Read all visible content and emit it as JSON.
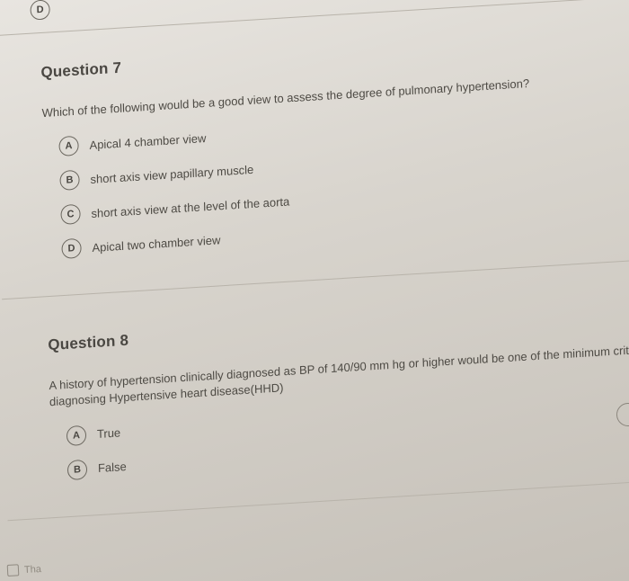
{
  "prev_option": {
    "letter": "D"
  },
  "question7": {
    "title": "Question 7",
    "text": "Which of the following would be a good view to assess the degree of pulmonary hypertension?",
    "options": [
      {
        "letter": "A",
        "text": "Apical 4 chamber view"
      },
      {
        "letter": "B",
        "text": "short axis view papillary muscle"
      },
      {
        "letter": "C",
        "text": "short axis view at the level of the aorta"
      },
      {
        "letter": "D",
        "text": "Apical two chamber view"
      }
    ]
  },
  "question8": {
    "title": "Question 8",
    "text": "A history of hypertension clinically diagnosed as BP of 140/90 mm hg or higher would be one of the minimum criteria for diagnosing Hypertensive heart disease(HHD)",
    "options": [
      {
        "letter": "A",
        "text": "True"
      },
      {
        "letter": "B",
        "text": "False"
      }
    ]
  },
  "bottom_fragment": "Tha"
}
